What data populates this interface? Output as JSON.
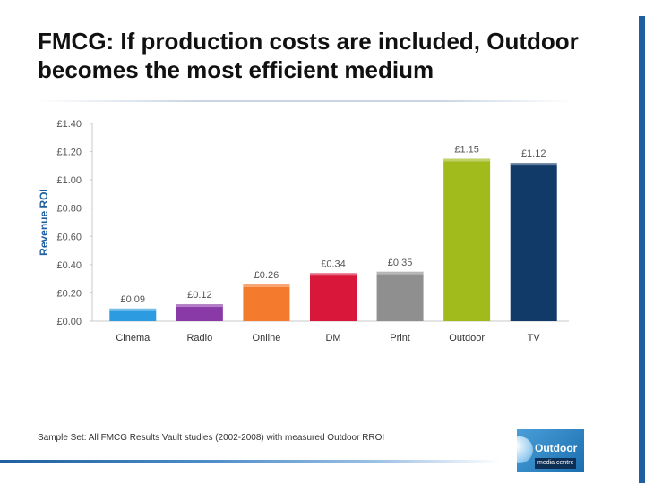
{
  "slide": {
    "title": "FMCG: If production costs are included, Outdoor becomes the most efficient medium",
    "footnote": "Sample Set: All FMCG Results Vault studies (2002-2008) with measured Outdoor RROI"
  },
  "logo": {
    "name": "Outdoor",
    "subtitle": "media centre"
  },
  "colors": {
    "Cinema": "#2d9be0",
    "Radio": "#8a3aa6",
    "Online": "#f47a2e",
    "DM": "#d8173a",
    "Print": "#8f8f8f",
    "Outdoor": "#a2bb1c",
    "TV": "#123a68"
  },
  "chart_data": {
    "type": "bar",
    "title": "",
    "xlabel": "",
    "ylabel": "Revenue ROI",
    "categories": [
      "Cinema",
      "Radio",
      "Online",
      "DM",
      "Print",
      "Outdoor",
      "TV"
    ],
    "values": [
      0.09,
      0.12,
      0.26,
      0.34,
      0.35,
      1.15,
      1.12
    ],
    "data_labels": [
      "£0.09",
      "£0.12",
      "£0.26",
      "£0.34",
      "£0.35",
      "£1.15",
      "£1.12"
    ],
    "ylim": [
      0,
      1.4
    ],
    "yticks": [
      0,
      0.2,
      0.4,
      0.6,
      0.8,
      1.0,
      1.2,
      1.4
    ],
    "ytick_labels": [
      "£0.00",
      "£0.20",
      "£0.40",
      "£0.60",
      "£0.80",
      "£1.00",
      "£1.20",
      "£1.40"
    ],
    "grid": false,
    "legend": "none"
  }
}
